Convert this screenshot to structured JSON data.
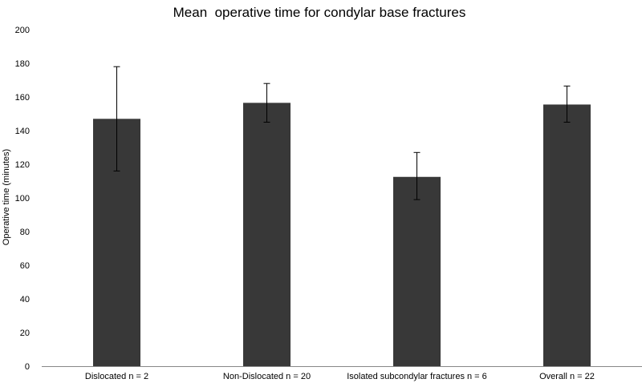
{
  "chart_data": {
    "type": "bar",
    "title": "Mean  operative time for condylar base fractures",
    "xlabel": "",
    "ylabel": "Operative time (minutes)",
    "categories": [
      "Dislocated n = 2",
      "Non-Dislocated n = 20",
      "Isolated subcondylar fractures n = 6",
      "Overall n = 22"
    ],
    "values": [
      147,
      156.5,
      112.5,
      155.5
    ],
    "error_low": [
      116,
      145,
      99,
      145
    ],
    "error_high": [
      178,
      168,
      127,
      166.5
    ],
    "ylim": [
      0,
      200
    ],
    "yticks": [
      "0",
      "20",
      "40",
      "60",
      "80",
      "100",
      "120",
      "140",
      "160",
      "180",
      "200"
    ],
    "grid": false,
    "legend": "none",
    "bar_color": "#383838",
    "error_bar_color": "#000000",
    "axis_color": "#888888"
  }
}
